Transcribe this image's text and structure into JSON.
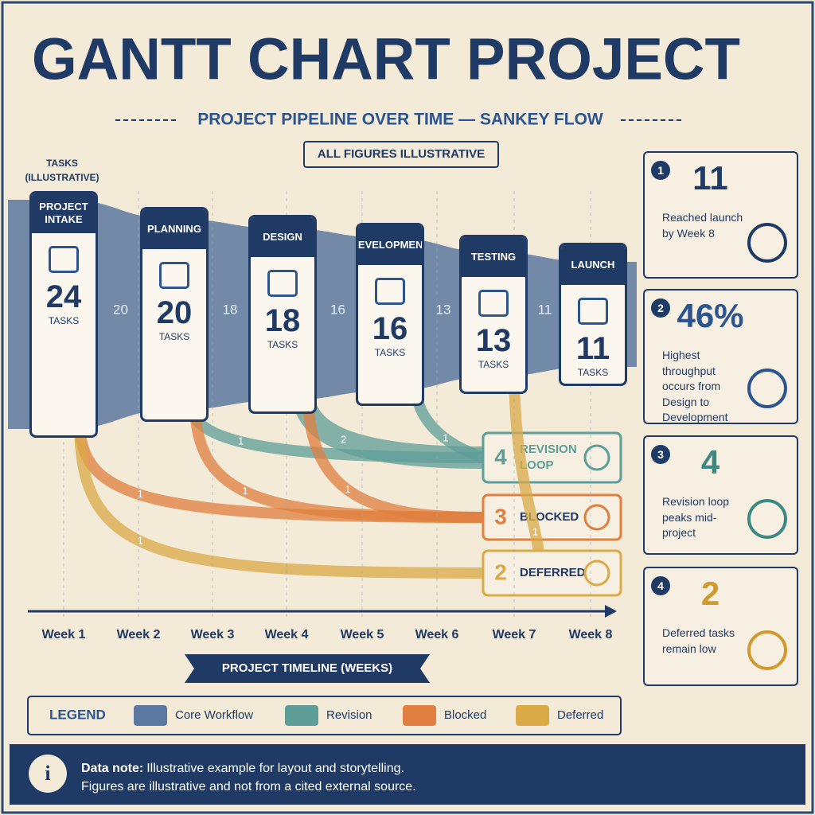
{
  "title": "GANTT CHART PROJECT",
  "subtitle": "PROJECT PIPELINE OVER TIME — SANKEY FLOW",
  "badge": "ALL FIGURES ILLUSTRATIVE",
  "axis_label": "TASKS (ILLUSTRATIVE)",
  "unit": "TASKS",
  "core_color": "#5a78a0",
  "stages": [
    {
      "name": "PROJECT INTAKE",
      "value": 24
    },
    {
      "name": "PLANNING",
      "value": 20
    },
    {
      "name": "DESIGN",
      "value": 18
    },
    {
      "name": "DEVELOPMENT",
      "value": 16
    },
    {
      "name": "TESTING",
      "value": 13
    },
    {
      "name": "LAUNCH",
      "value": 11
    }
  ],
  "outflows": [
    {
      "value": 4,
      "name": "REVISION LOOP",
      "color": "#5e9e98",
      "branches": [
        1,
        2,
        1
      ]
    },
    {
      "value": 3,
      "name": "BLOCKED",
      "color": "#e07f3f",
      "branches": [
        1,
        1,
        1
      ]
    },
    {
      "value": 2,
      "name": "DEFERRED",
      "color": "#d9aa46",
      "branches": [
        1,
        1
      ]
    }
  ],
  "weeks": [
    "Week 1",
    "Week 2",
    "Week 3",
    "Week 4",
    "Week 5",
    "Week 6",
    "Week 7",
    "Week 8"
  ],
  "timeline_label": "PROJECT TIMELINE (WEEKS)",
  "legend": {
    "title": "LEGEND",
    "items": [
      {
        "name": "Core Workflow",
        "color": "#5a78a0"
      },
      {
        "name": "Revision",
        "color": "#5e9e98"
      },
      {
        "name": "Blocked",
        "color": "#e07f3f"
      },
      {
        "name": "Deferred",
        "color": "#d9aa46"
      }
    ]
  },
  "insights": [
    {
      "number": "1",
      "value": "11",
      "text": "Reached launch by Week 8"
    },
    {
      "number": "2",
      "value": "46%",
      "text": "Highest throughput occurs from Design to Development"
    },
    {
      "number": "3",
      "value": "4",
      "text": "Revision loop peaks mid-project"
    },
    {
      "number": "4",
      "value": "2",
      "text": "Deferred tasks remain low"
    }
  ],
  "note": {
    "label": "Data note:",
    "lines": [
      "Illustrative example for layout and storytelling.",
      "Figures are illustrative and not from a cited external source."
    ]
  }
}
